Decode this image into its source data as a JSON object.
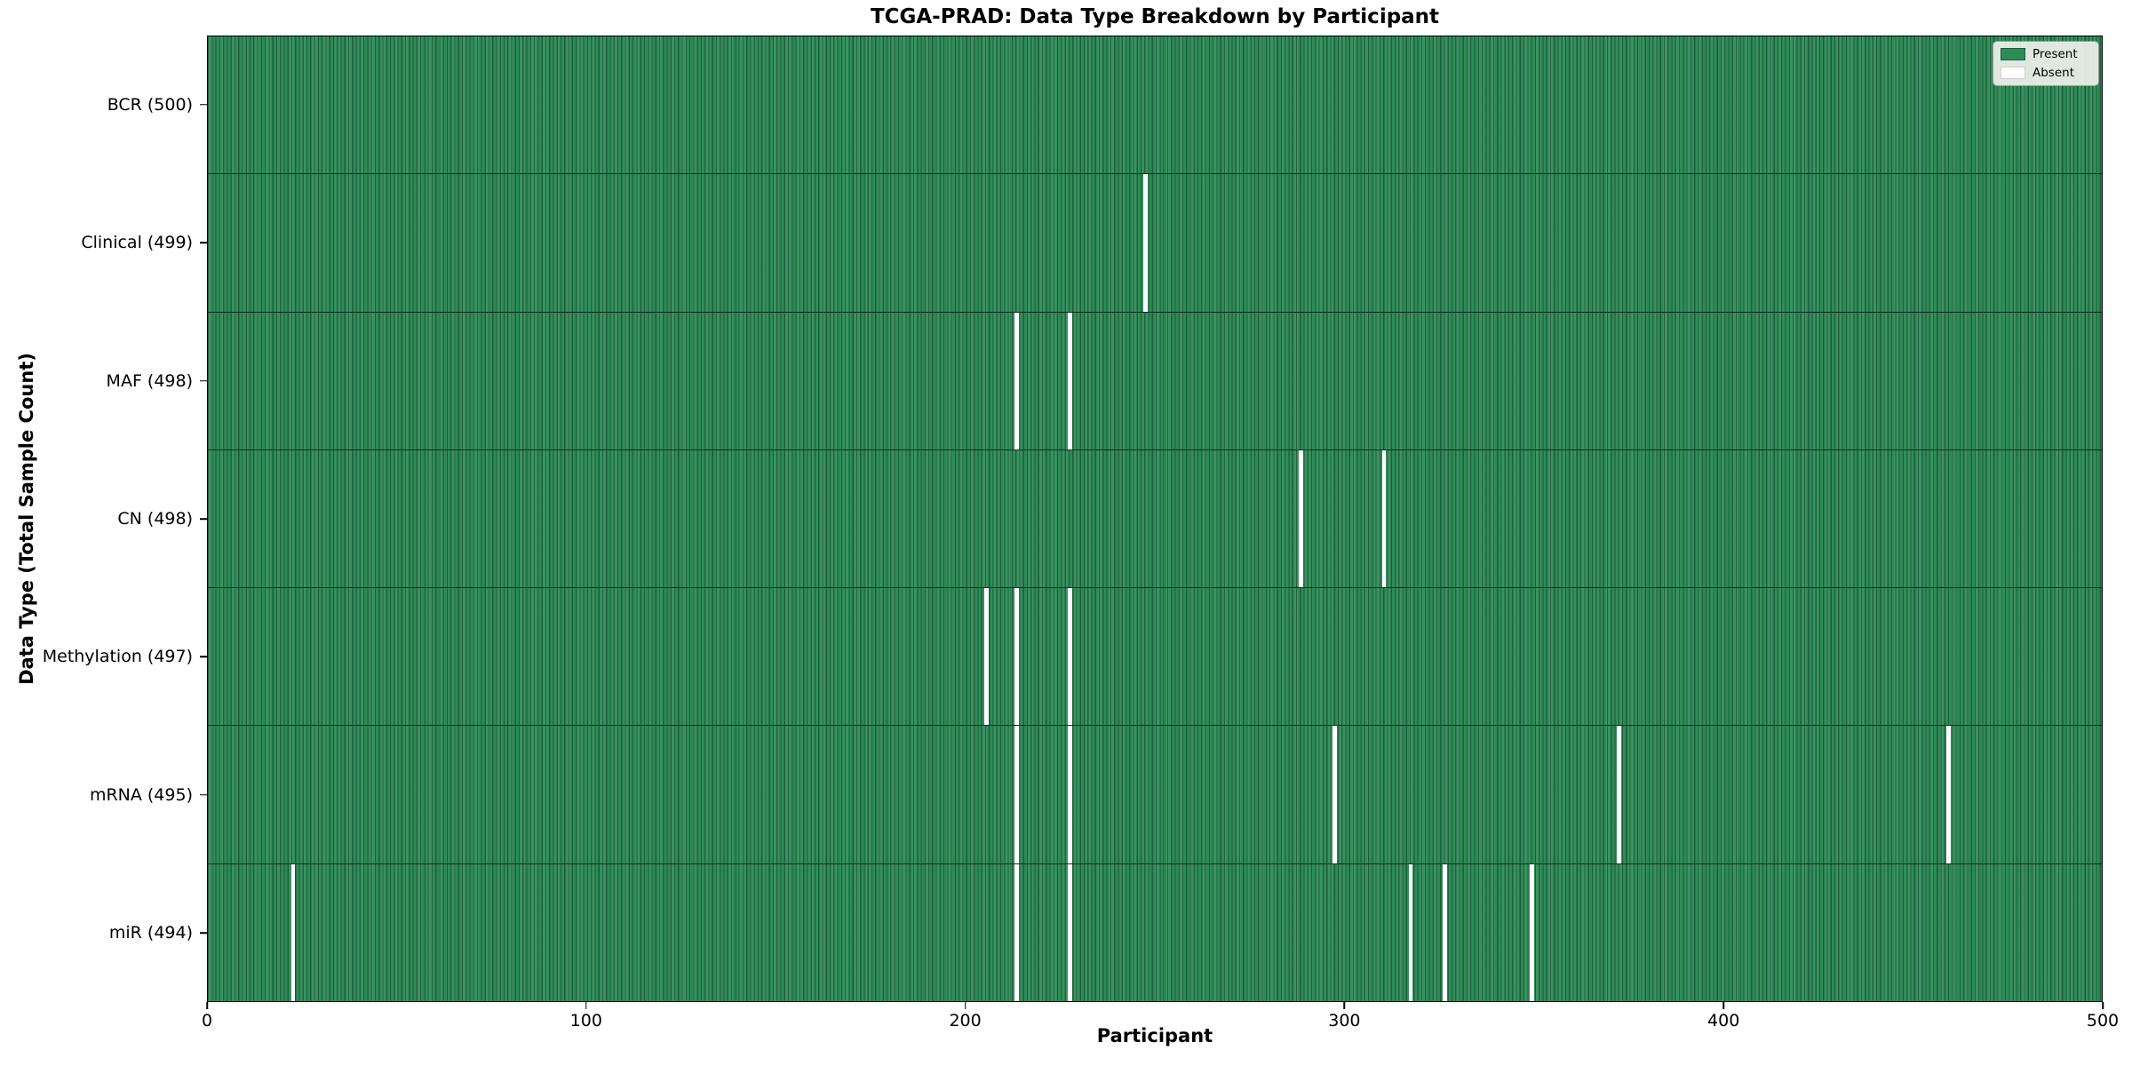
{
  "figure": {
    "title": "TCGA-PRAD: Data Type Breakdown by Participant",
    "xlabel": "Participant",
    "ylabel": "Data Type (Total Sample Count)"
  },
  "legend": {
    "items": [
      {
        "label": "Present",
        "color": "#2e8b57",
        "border": "#1e5c3a"
      },
      {
        "label": "Absent",
        "color": "#ffffff",
        "border": "#cfcfcf"
      }
    ]
  },
  "chart_data": {
    "type": "heatmap",
    "title": "TCGA-PRAD: Data Type Breakdown by Participant",
    "xlabel": "Participant",
    "ylabel": "Data Type (Total Sample Count)",
    "x_range": [
      0,
      500
    ],
    "x_ticks": [
      0,
      100,
      200,
      300,
      400,
      500
    ],
    "n_participants": 500,
    "present_color": "#2e8b57",
    "absent_color": "#ffffff",
    "legend_entries": [
      "Present",
      "Absent"
    ],
    "legend_position": "upper right",
    "grid": false,
    "rows": [
      {
        "label": "BCR (500)",
        "data_type": "BCR",
        "total": 500,
        "absent_participants": []
      },
      {
        "label": "Clinical (499)",
        "data_type": "Clinical",
        "total": 499,
        "absent_participants": [
          247
        ]
      },
      {
        "label": "MAF (498)",
        "data_type": "MAF",
        "total": 498,
        "absent_participants": [
          213,
          227
        ]
      },
      {
        "label": "CN (498)",
        "data_type": "CN",
        "total": 498,
        "absent_participants": [
          288,
          310
        ]
      },
      {
        "label": "Methylation (497)",
        "data_type": "Methylation",
        "total": 497,
        "absent_participants": [
          205,
          213,
          227
        ]
      },
      {
        "label": "mRNA (495)",
        "data_type": "mRNA",
        "total": 495,
        "absent_participants": [
          213,
          227,
          297,
          372,
          459
        ]
      },
      {
        "label": "miR (494)",
        "data_type": "miR",
        "total": 494,
        "absent_participants": [
          22,
          213,
          227,
          317,
          326,
          349
        ]
      }
    ]
  }
}
